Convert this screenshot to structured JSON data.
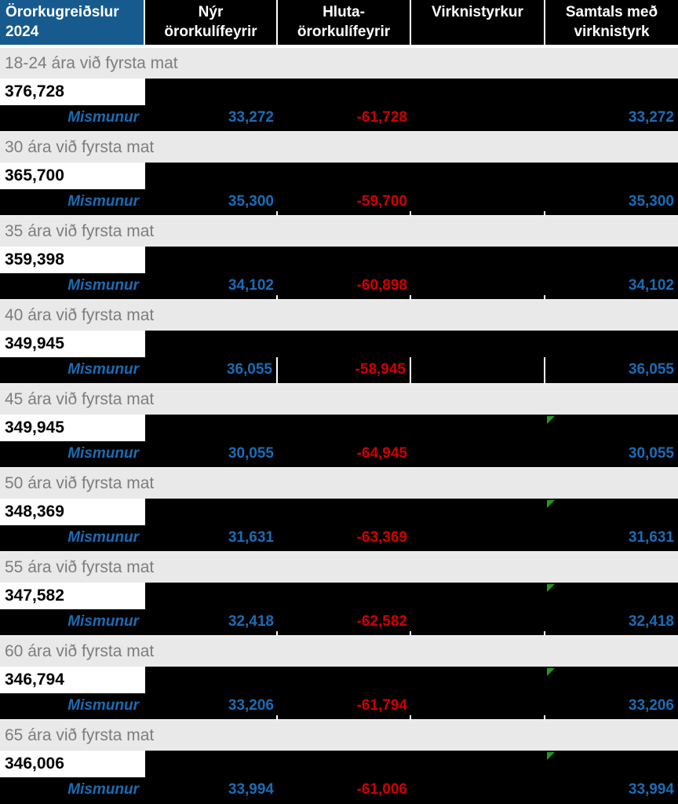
{
  "table": {
    "header": {
      "title_line1": "Örorkugreiðslur",
      "title_line2": "2024",
      "columns": [
        {
          "line1": "Nýr",
          "line2": "örorkulífeyrir"
        },
        {
          "line1": "Hluta-",
          "line2": "örorkulífeyrir"
        },
        {
          "line1": "Virknistyrkur",
          "line2": ""
        },
        {
          "line1": "Samtals með",
          "line2": "virknistyrk"
        }
      ]
    },
    "mismunur_label": "Mismunur",
    "sections": [
      {
        "age_label": "18-24 ára við fyrsta mat",
        "value": "376,728",
        "nyr": "33,272",
        "hluta": "-61,728",
        "virkni": "",
        "samtals": "33,272",
        "green_marker": false,
        "col_borders": false,
        "bottom_ticks": false
      },
      {
        "age_label": "30 ára við fyrsta mat",
        "value": "365,700",
        "nyr": "35,300",
        "hluta": "-59,700",
        "virkni": "",
        "samtals": "35,300",
        "green_marker": false,
        "col_borders": false,
        "bottom_ticks": true
      },
      {
        "age_label": "35 ára við fyrsta mat",
        "value": "359,398",
        "nyr": "34,102",
        "hluta": "-60,898",
        "virkni": "",
        "samtals": "34,102",
        "green_marker": false,
        "col_borders": false,
        "bottom_ticks": true
      },
      {
        "age_label": "40 ára við fyrsta mat",
        "value": "349,945",
        "nyr": "36,055",
        "hluta": "-58,945",
        "virkni": "",
        "samtals": "36,055",
        "green_marker": false,
        "col_borders": true,
        "bottom_ticks": false
      },
      {
        "age_label": "45 ára við fyrsta mat",
        "value": "349,945",
        "nyr": "30,055",
        "hluta": "-64,945",
        "virkni": "",
        "samtals": "30,055",
        "green_marker": true,
        "col_borders": false,
        "bottom_ticks": false
      },
      {
        "age_label": "50 ára við fyrsta mat",
        "value": "348,369",
        "nyr": "31,631",
        "hluta": "-63,369",
        "virkni": "",
        "samtals": "31,631",
        "green_marker": true,
        "col_borders": false,
        "bottom_ticks": false
      },
      {
        "age_label": "55 ára við fyrsta mat",
        "value": "347,582",
        "nyr": "32,418",
        "hluta": "-62,582",
        "virkni": "",
        "samtals": "32,418",
        "green_marker": true,
        "col_borders": false,
        "bottom_ticks": true
      },
      {
        "age_label": "60 ára við fyrsta mat",
        "value": "346,794",
        "nyr": "33,206",
        "hluta": "-61,794",
        "virkni": "",
        "samtals": "33,206",
        "green_marker": true,
        "col_borders": false,
        "bottom_ticks": true
      },
      {
        "age_label": "65 ára við fyrsta mat",
        "value": "346,006",
        "nyr": "33,994",
        "hluta": "-61,006",
        "virkni": "",
        "samtals": "33,994",
        "green_marker": true,
        "col_borders": false,
        "bottom_ticks": false
      }
    ],
    "colors": {
      "header_blue": "#175a8e",
      "accent_blue": "#1a6cb5",
      "negative_red": "#cf0000",
      "marker_green": "#1f9a1f",
      "label_row_gray": "#e9e9e9"
    }
  }
}
